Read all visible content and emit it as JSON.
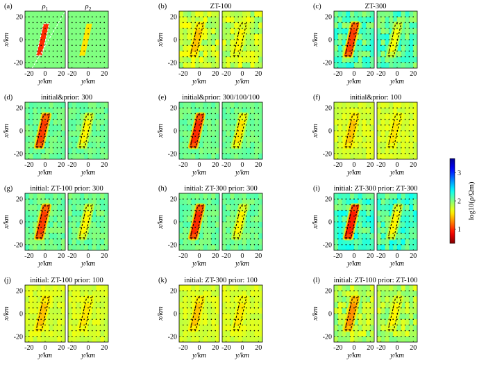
{
  "figure": {
    "colorbar": {
      "label": "log10(ρ/Ωm)",
      "ticks": [
        "1",
        "2",
        "3"
      ],
      "colormap": "jet-reversed"
    },
    "tick_labels": {
      "x": [
        "-20",
        "0",
        "20"
      ],
      "y": [
        "20",
        "0",
        "-20"
      ]
    },
    "xlabel": "y/km",
    "ylabel": "x/km",
    "panels": [
      {
        "label": "(a)",
        "title": "",
        "sub_titles": [
          "ρ1",
          "ρ2"
        ],
        "rho1_log": 1.0,
        "rho2_log": 1.55,
        "background_log": 2.0,
        "noise": 0.0
      },
      {
        "label": "(b)",
        "title": "ZT-100",
        "sub_titles": [
          "",
          ""
        ],
        "rho1_log": 1.45,
        "rho2_log": 1.6,
        "background_log": 1.8,
        "noise": 0.18
      },
      {
        "label": "(c)",
        "title": "ZT-300",
        "sub_titles": [
          "",
          ""
        ],
        "rho1_log": 1.05,
        "rho2_log": 1.65,
        "background_log": 2.1,
        "noise": 0.2
      },
      {
        "label": "(d)",
        "title": "initial&prior: 300",
        "sub_titles": [
          "",
          ""
        ],
        "rho1_log": 1.05,
        "rho2_log": 1.6,
        "background_log": 2.05,
        "noise": 0.08
      },
      {
        "label": "(e)",
        "title": "initial&prior: 300/100/100",
        "sub_titles": [
          "",
          ""
        ],
        "rho1_log": 1.0,
        "rho2_log": 1.55,
        "background_log": 2.05,
        "noise": 0.08
      },
      {
        "label": "(f)",
        "title": "initial&prior: 100",
        "sub_titles": [
          "",
          ""
        ],
        "rho1_log": 1.45,
        "rho2_log": 1.55,
        "background_log": 1.75,
        "noise": 0.08
      },
      {
        "label": "(g)",
        "title": "initial: ZT-100   prior: 300",
        "sub_titles": [
          "",
          ""
        ],
        "rho1_log": 1.05,
        "rho2_log": 1.6,
        "background_log": 2.05,
        "noise": 0.1
      },
      {
        "label": "(h)",
        "title": "initial: ZT-300   prior: 300",
        "sub_titles": [
          "",
          ""
        ],
        "rho1_log": 1.0,
        "rho2_log": 1.6,
        "background_log": 2.05,
        "noise": 0.1
      },
      {
        "label": "(i)",
        "title": "initial: ZT-300   prior: ZT-300",
        "sub_titles": [
          "",
          ""
        ],
        "rho1_log": 0.95,
        "rho2_log": 1.6,
        "background_log": 2.15,
        "noise": 0.2
      },
      {
        "label": "(j)",
        "title": "initial: ZT-100   prior: 100",
        "sub_titles": [
          "",
          ""
        ],
        "rho1_log": 1.45,
        "rho2_log": 1.55,
        "background_log": 1.75,
        "noise": 0.08
      },
      {
        "label": "(k)",
        "title": "initial: ZT-300   prior: 100",
        "sub_titles": [
          "",
          ""
        ],
        "rho1_log": 1.45,
        "rho2_log": 1.55,
        "background_log": 1.75,
        "noise": 0.08
      },
      {
        "label": "(l)",
        "title": "initial: ZT-100   prior: ZT-100",
        "sub_titles": [
          "",
          ""
        ],
        "rho1_log": 1.3,
        "rho2_log": 1.6,
        "background_log": 1.85,
        "noise": 0.18
      }
    ]
  }
}
